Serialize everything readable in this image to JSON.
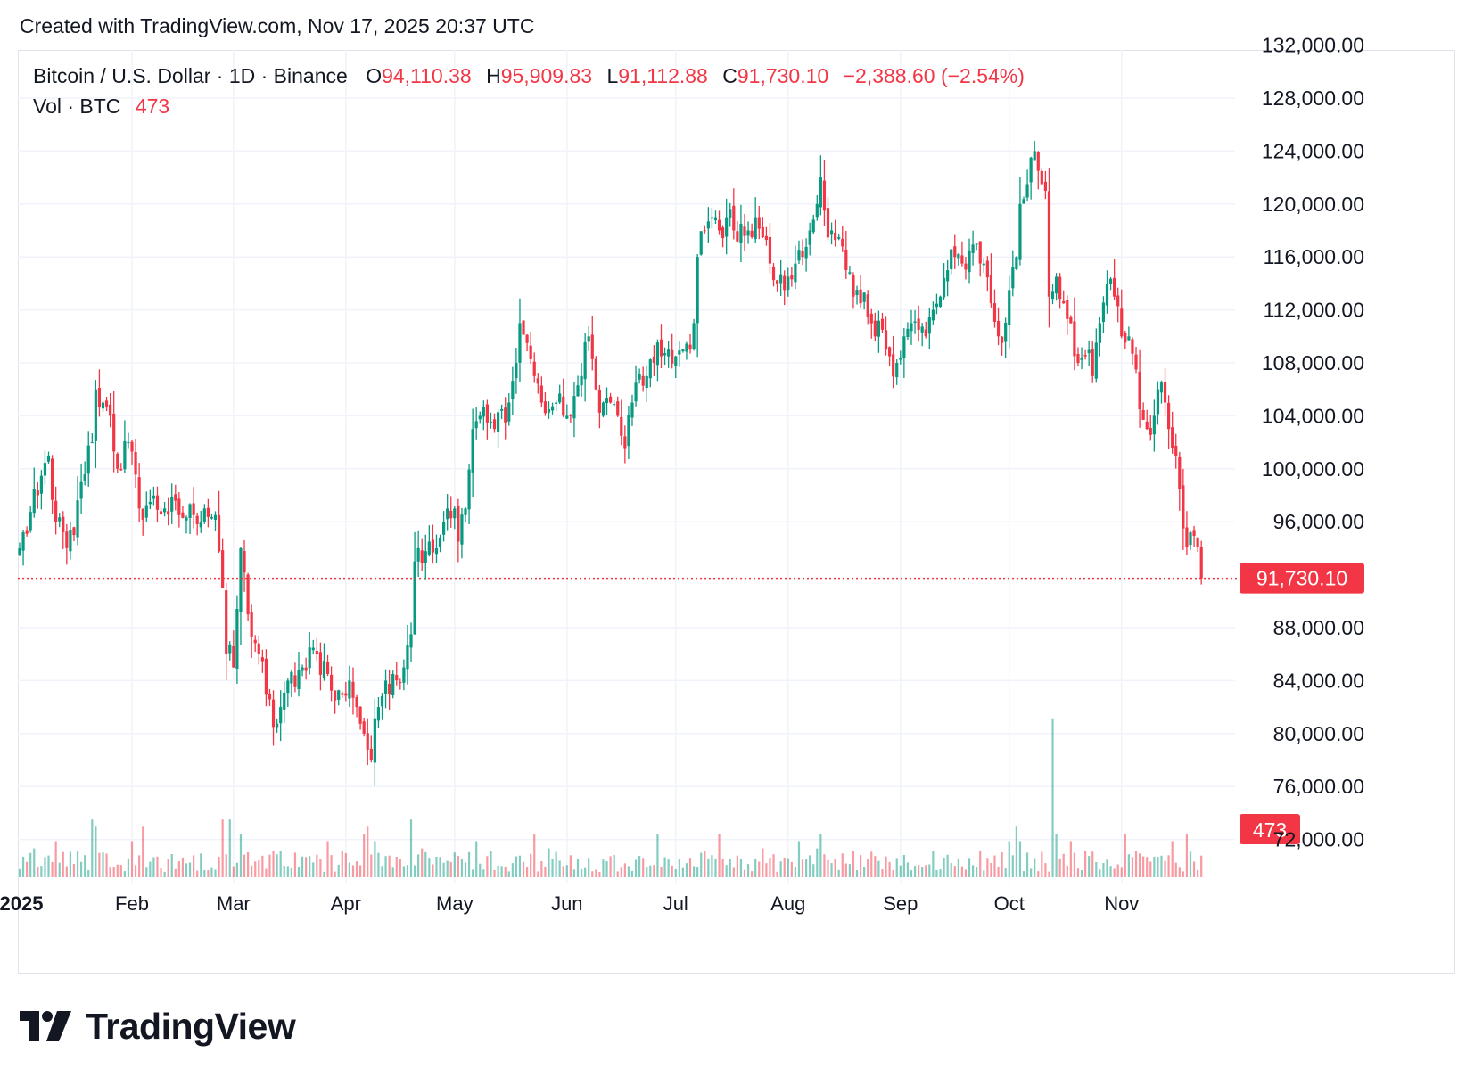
{
  "header": {
    "created_text": "Created with TradingView.com, Nov 17, 2025 20:37 UTC"
  },
  "legend": {
    "symbol": "Bitcoin / U.S. Dollar · 1D · Binance",
    "open_label": "O",
    "open": "94,110.38",
    "high_label": "H",
    "high": "95,909.83",
    "low_label": "L",
    "low": "91,112.88",
    "close_label": "C",
    "close": "91,730.10",
    "change": "−2,388.60 (−2.54%)",
    "volume_label": "Vol · BTC",
    "volume": "473"
  },
  "footer": {
    "logo_text": "TradingView"
  },
  "colors": {
    "up": "#089981",
    "down": "#f23645",
    "grid": "#f0f3fa",
    "text": "#131722"
  },
  "chart_data": {
    "type": "candlestick",
    "title": "Bitcoin / U.S. Dollar · 1D · Binance",
    "ylim": [
      70000,
      132000
    ],
    "y_ticks": [
      72000,
      76000,
      80000,
      84000,
      88000,
      96000,
      100000,
      104000,
      108000,
      112000,
      116000,
      120000,
      124000,
      128000,
      132000
    ],
    "y_tick_labels": [
      "72,000.00",
      "76,000.00",
      "80,000.00",
      "84,000.00",
      "88,000.00",
      "96,000.00",
      "100,000.00",
      "104,000.00",
      "108,000.00",
      "112,000.00",
      "116,000.00",
      "120,000.00",
      "124,000.00",
      "128,000.00",
      "132,000.00"
    ],
    "x_ticks": [
      {
        "label": "2025",
        "day": 0
      },
      {
        "label": "Feb",
        "day": 31
      },
      {
        "label": "Mar",
        "day": 59
      },
      {
        "label": "Apr",
        "day": 90
      },
      {
        "label": "May",
        "day": 120
      },
      {
        "label": "Jun",
        "day": 151
      },
      {
        "label": "Jul",
        "day": 181
      },
      {
        "label": "Aug",
        "day": 212
      },
      {
        "label": "Sep",
        "day": 243
      },
      {
        "label": "Oct",
        "day": 273
      },
      {
        "label": "Nov",
        "day": 304
      }
    ],
    "last_price": 91730.1,
    "last_price_label": "91,730.10",
    "last_volume": 473,
    "last_volume_label": "473",
    "close_path": [
      [
        0,
        94000
      ],
      [
        5,
        98000
      ],
      [
        8,
        101000
      ],
      [
        10,
        96000
      ],
      [
        13,
        94000
      ],
      [
        15,
        95000
      ],
      [
        17,
        99000
      ],
      [
        20,
        102000
      ],
      [
        21,
        106000
      ],
      [
        23,
        105000
      ],
      [
        25,
        104000
      ],
      [
        27,
        100000
      ],
      [
        30,
        102000
      ],
      [
        33,
        97000
      ],
      [
        36,
        97500
      ],
      [
        40,
        97000
      ],
      [
        44,
        96500
      ],
      [
        48,
        96500
      ],
      [
        51,
        97000
      ],
      [
        54,
        96500
      ],
      [
        56,
        91000
      ],
      [
        57,
        86000
      ],
      [
        59,
        85000
      ],
      [
        61,
        94000
      ],
      [
        63,
        89000
      ],
      [
        66,
        86000
      ],
      [
        68,
        83000
      ],
      [
        70,
        80500
      ],
      [
        72,
        82000
      ],
      [
        74,
        84000
      ],
      [
        76,
        83500
      ],
      [
        78,
        85000
      ],
      [
        80,
        86500
      ],
      [
        82,
        86000
      ],
      [
        85,
        84500
      ],
      [
        87,
        82500
      ],
      [
        89,
        83000
      ],
      [
        91,
        84000
      ],
      [
        93,
        82000
      ],
      [
        95,
        80000
      ],
      [
        97,
        78000
      ],
      [
        99,
        82000
      ],
      [
        101,
        84000
      ],
      [
        103,
        84500
      ],
      [
        106,
        85000
      ],
      [
        108,
        87500
      ],
      [
        109,
        93000
      ],
      [
        110,
        94000
      ],
      [
        113,
        94500
      ],
      [
        115,
        94000
      ],
      [
        117,
        96000
      ],
      [
        118,
        97000
      ],
      [
        120,
        97000
      ],
      [
        121,
        94500
      ],
      [
        123,
        97000
      ],
      [
        125,
        103000
      ],
      [
        127,
        104000
      ],
      [
        129,
        103500
      ],
      [
        131,
        103000
      ],
      [
        133,
        104500
      ],
      [
        135,
        105000
      ],
      [
        137,
        108000
      ],
      [
        138,
        111000
      ],
      [
        140,
        109500
      ],
      [
        142,
        107000
      ],
      [
        144,
        105000
      ],
      [
        146,
        104500
      ],
      [
        148,
        105000
      ],
      [
        150,
        104000
      ],
      [
        151,
        104000
      ],
      [
        153,
        105500
      ],
      [
        155,
        107000
      ],
      [
        157,
        110000
      ],
      [
        159,
        106000
      ],
      [
        161,
        105000
      ],
      [
        163,
        105000
      ],
      [
        165,
        104000
      ],
      [
        167,
        101500
      ],
      [
        169,
        105000
      ],
      [
        170,
        106500
      ],
      [
        173,
        107000
      ],
      [
        175,
        108000
      ],
      [
        177,
        108500
      ],
      [
        179,
        109000
      ],
      [
        181,
        108500
      ],
      [
        183,
        109000
      ],
      [
        185,
        109000
      ],
      [
        186,
        111000
      ],
      [
        187,
        116000
      ],
      [
        189,
        118000
      ],
      [
        191,
        119000
      ],
      [
        193,
        118000
      ],
      [
        195,
        119000
      ],
      [
        197,
        118000
      ],
      [
        199,
        118500
      ],
      [
        201,
        118000
      ],
      [
        202,
        117500
      ],
      [
        203,
        119000
      ],
      [
        205,
        117500
      ],
      [
        207,
        115500
      ],
      [
        209,
        114000
      ],
      [
        211,
        113500
      ],
      [
        212,
        114500
      ],
      [
        214,
        115500
      ],
      [
        216,
        116000
      ],
      [
        218,
        118000
      ],
      [
        220,
        120000
      ],
      [
        221,
        122000
      ],
      [
        222,
        119500
      ],
      [
        224,
        118000
      ],
      [
        226,
        117500
      ],
      [
        228,
        115000
      ],
      [
        230,
        113000
      ],
      [
        232,
        112500
      ],
      [
        234,
        111500
      ],
      [
        236,
        110000
      ],
      [
        238,
        110500
      ],
      [
        240,
        108500
      ],
      [
        242,
        108000
      ],
      [
        244,
        110000
      ],
      [
        246,
        111000
      ],
      [
        248,
        110500
      ],
      [
        250,
        110000
      ],
      [
        252,
        112000
      ],
      [
        254,
        113000
      ],
      [
        256,
        115000
      ],
      [
        258,
        116000
      ],
      [
        260,
        115500
      ],
      [
        262,
        116500
      ],
      [
        264,
        117000
      ],
      [
        266,
        115500
      ],
      [
        268,
        112500
      ],
      [
        270,
        110000
      ],
      [
        271,
        109500
      ],
      [
        273,
        113500
      ],
      [
        275,
        116000
      ],
      [
        276,
        120000
      ],
      [
        278,
        121500
      ],
      [
        279,
        123500
      ],
      [
        280,
        124000
      ],
      [
        281,
        122500
      ],
      [
        282,
        121500
      ],
      [
        283,
        121000
      ],
      [
        284,
        113000
      ],
      [
        286,
        114500
      ],
      [
        288,
        112500
      ],
      [
        290,
        111000
      ],
      [
        292,
        108000
      ],
      [
        294,
        108500
      ],
      [
        296,
        107000
      ],
      [
        298,
        111000
      ],
      [
        300,
        114000
      ],
      [
        302,
        113000
      ],
      [
        304,
        110000
      ],
      [
        306,
        110000
      ],
      [
        308,
        107500
      ],
      [
        309,
        104500
      ],
      [
        311,
        103000
      ],
      [
        313,
        104000
      ],
      [
        314,
        106000
      ],
      [
        316,
        105000
      ],
      [
        317,
        103000
      ],
      [
        319,
        101000
      ],
      [
        320,
        98500
      ],
      [
        321,
        95500
      ],
      [
        323,
        95200
      ],
      [
        325,
        94100
      ],
      [
        326,
        91730.1
      ]
    ],
    "volume_bars": [
      [
        4,
        4
      ],
      [
        10,
        5
      ],
      [
        20,
        8
      ],
      [
        21,
        7
      ],
      [
        31,
        5
      ],
      [
        34,
        7
      ],
      [
        56,
        8
      ],
      [
        58,
        8
      ],
      [
        61,
        6
      ],
      [
        85,
        5
      ],
      [
        95,
        6
      ],
      [
        96,
        7
      ],
      [
        98,
        5
      ],
      [
        108,
        8
      ],
      [
        111,
        4
      ],
      [
        126,
        5
      ],
      [
        142,
        6
      ],
      [
        146,
        4
      ],
      [
        176,
        6
      ],
      [
        193,
        6
      ],
      [
        205,
        4
      ],
      [
        215,
        5
      ],
      [
        220,
        4
      ],
      [
        221,
        6
      ],
      [
        273,
        5
      ],
      [
        275,
        7
      ],
      [
        276,
        5
      ],
      [
        285,
        22
      ],
      [
        286,
        6
      ],
      [
        290,
        5
      ],
      [
        305,
        6
      ],
      [
        318,
        5
      ],
      [
        322,
        6
      ],
      [
        326,
        3
      ]
    ]
  }
}
